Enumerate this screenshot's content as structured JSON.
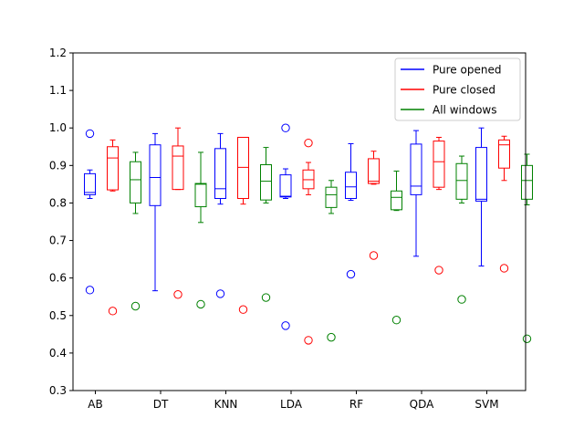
{
  "chart_data": {
    "type": "box",
    "title": "",
    "xlabel": "",
    "ylabel": "",
    "ylim": [
      0.3,
      1.2
    ],
    "yticks": [
      0.3,
      0.4,
      0.5,
      0.6,
      0.7,
      0.8,
      0.9,
      1.0,
      1.1,
      1.2
    ],
    "ytick_labels": [
      "0.3",
      "0.4",
      "0.5",
      "0.6",
      "0.7",
      "0.8",
      "0.9",
      "1.0",
      "1.1",
      "1.2"
    ],
    "categories": [
      "AB",
      "DT",
      "KNN",
      "LDA",
      "RF",
      "QDA",
      "SVM"
    ],
    "legend_position": "top-right",
    "grid": false,
    "series": [
      {
        "name": "Pure opened",
        "color": "#0000ff",
        "boxes": [
          {
            "whislo": 0.812,
            "q1": 0.822,
            "med": 0.828,
            "q3": 0.878,
            "whishi": 0.888,
            "fliers": [
              0.985,
              0.568
            ]
          },
          {
            "whislo": 0.566,
            "q1": 0.793,
            "med": 0.868,
            "q3": 0.955,
            "whishi": 0.985,
            "fliers": []
          },
          {
            "whislo": 0.797,
            "q1": 0.812,
            "med": 0.838,
            "q3": 0.945,
            "whishi": 0.985,
            "fliers": [
              0.558
            ]
          },
          {
            "whislo": 0.812,
            "q1": 0.816,
            "med": 0.818,
            "q3": 0.875,
            "whishi": 0.891,
            "fliers": [
              1.0,
              0.473
            ]
          },
          {
            "whislo": 0.807,
            "q1": 0.812,
            "med": 0.843,
            "q3": 0.882,
            "whishi": 0.958,
            "fliers": [
              0.61
            ]
          },
          {
            "whislo": 0.658,
            "q1": 0.822,
            "med": 0.845,
            "q3": 0.957,
            "whishi": 0.993,
            "fliers": []
          },
          {
            "whislo": 0.632,
            "q1": 0.805,
            "med": 0.81,
            "q3": 0.948,
            "whishi": 1.0,
            "fliers": []
          }
        ]
      },
      {
        "name": "Pure closed",
        "color": "#ff0000",
        "boxes": [
          {
            "whislo": 0.832,
            "q1": 0.835,
            "med": 0.92,
            "q3": 0.95,
            "whishi": 0.968,
            "fliers": [
              0.512
            ]
          },
          {
            "whislo": 0.836,
            "q1": 0.836,
            "med": 0.925,
            "q3": 0.952,
            "whishi": 1.0,
            "fliers": [
              0.556
            ]
          },
          {
            "whislo": 0.797,
            "q1": 0.812,
            "med": 0.895,
            "q3": 0.975,
            "whishi": 0.975,
            "fliers": [
              0.516
            ]
          },
          {
            "whislo": 0.822,
            "q1": 0.838,
            "med": 0.862,
            "q3": 0.888,
            "whishi": 0.908,
            "fliers": [
              0.96,
              0.434
            ]
          },
          {
            "whislo": 0.85,
            "q1": 0.852,
            "med": 0.858,
            "q3": 0.918,
            "whishi": 0.938,
            "fliers": [
              0.66
            ]
          },
          {
            "whislo": 0.836,
            "q1": 0.842,
            "med": 0.91,
            "q3": 0.965,
            "whishi": 0.975,
            "fliers": [
              0.621
            ]
          },
          {
            "whislo": 0.86,
            "q1": 0.893,
            "med": 0.955,
            "q3": 0.968,
            "whishi": 0.978,
            "fliers": [
              0.626
            ]
          }
        ]
      },
      {
        "name": "All windows",
        "color": "#008000",
        "boxes": [
          {
            "whislo": 0.772,
            "q1": 0.8,
            "med": 0.862,
            "q3": 0.91,
            "whishi": 0.935,
            "fliers": [
              0.525
            ]
          },
          {
            "whislo": 0.748,
            "q1": 0.79,
            "med": 0.85,
            "q3": 0.852,
            "whishi": 0.935,
            "fliers": [
              0.53
            ]
          },
          {
            "whislo": 0.8,
            "q1": 0.808,
            "med": 0.858,
            "q3": 0.902,
            "whishi": 0.948,
            "fliers": [
              0.548
            ]
          },
          {
            "whislo": 0.772,
            "q1": 0.788,
            "med": 0.822,
            "q3": 0.842,
            "whishi": 0.86,
            "fliers": [
              0.442
            ]
          },
          {
            "whislo": 0.78,
            "q1": 0.782,
            "med": 0.815,
            "q3": 0.832,
            "whishi": 0.885,
            "fliers": [
              0.488
            ]
          },
          {
            "whislo": 0.8,
            "q1": 0.81,
            "med": 0.86,
            "q3": 0.905,
            "whishi": 0.925,
            "fliers": [
              0.543
            ]
          },
          {
            "whislo": 0.795,
            "q1": 0.81,
            "med": 0.86,
            "q3": 0.9,
            "whishi": 0.93,
            "fliers": [
              0.438
            ]
          }
        ]
      }
    ]
  }
}
